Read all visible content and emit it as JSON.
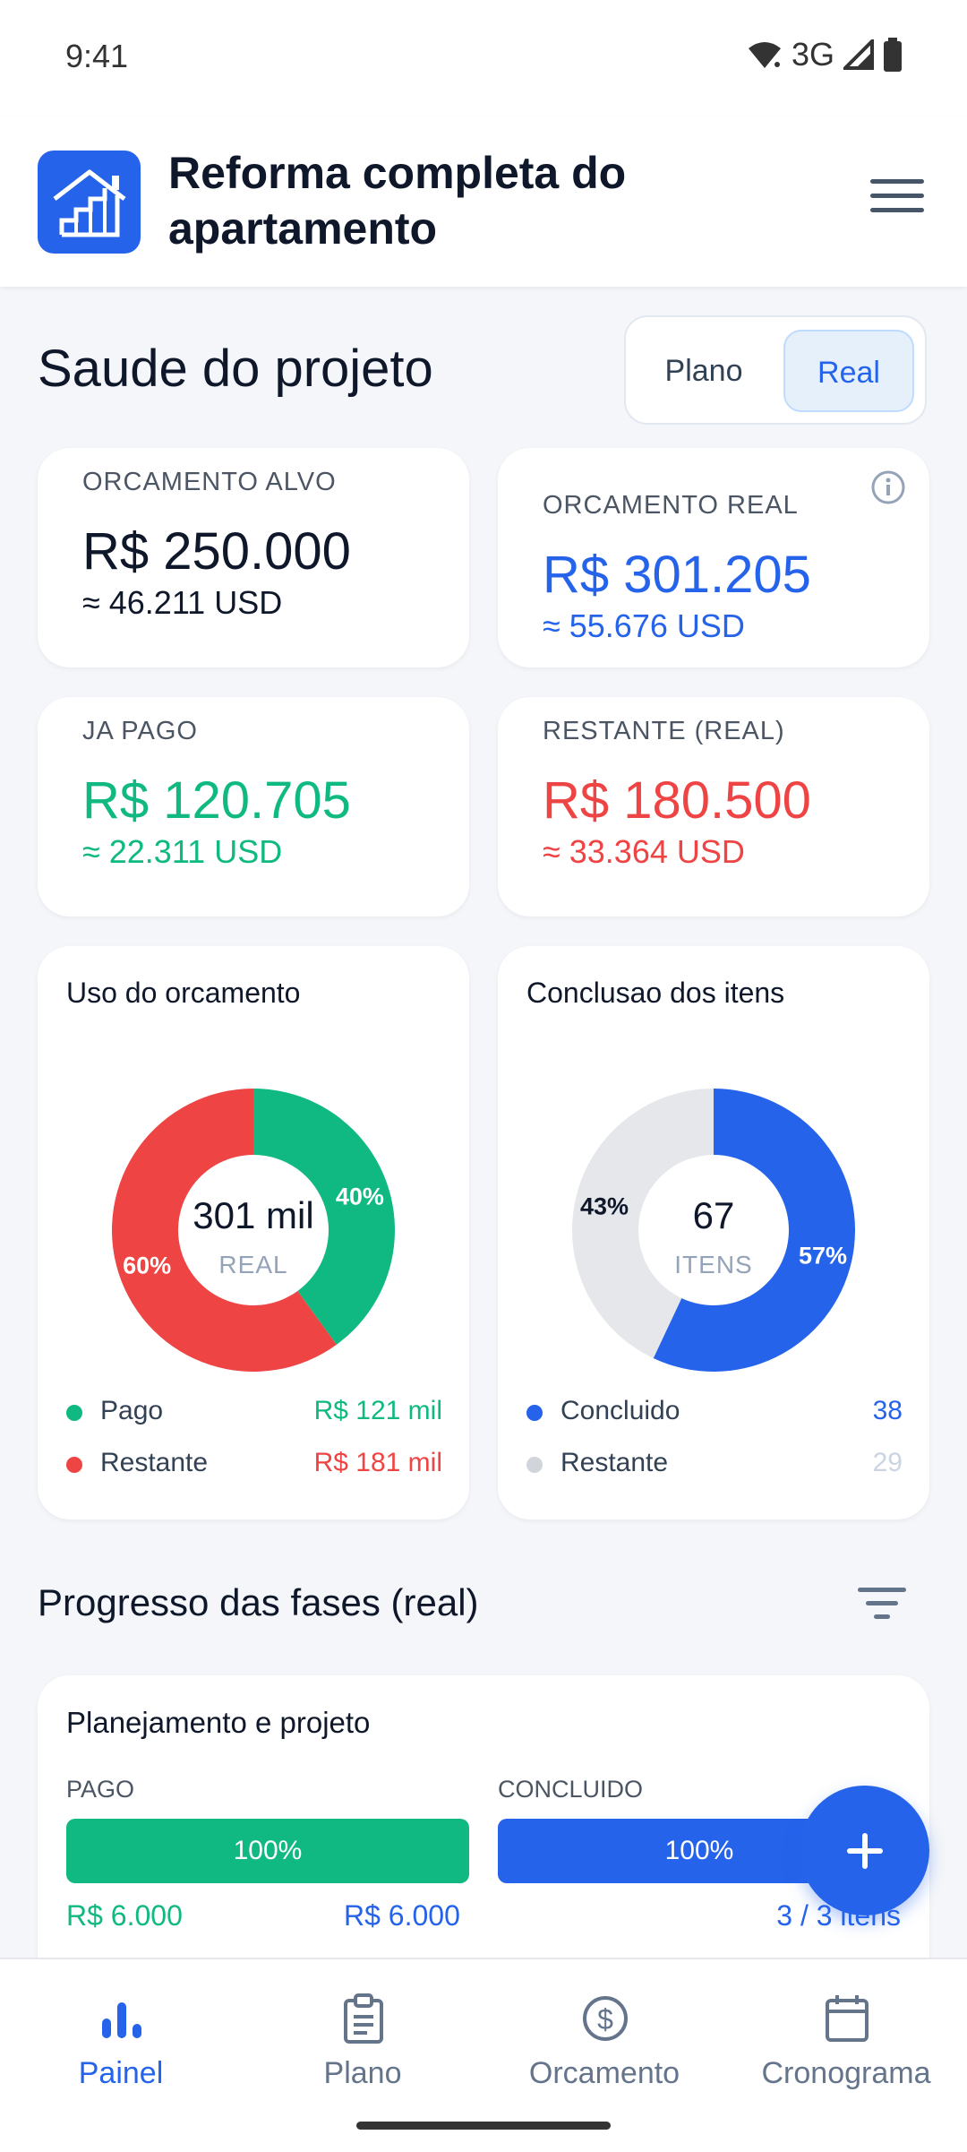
{
  "status": {
    "time": "9:41",
    "network": "3G"
  },
  "app": {
    "title": "Reforma completa do apartamento"
  },
  "health": {
    "title": "Saude do projeto",
    "toggle": {
      "plano": "Plano",
      "real": "Real",
      "selected": "Real"
    }
  },
  "stats": {
    "target": {
      "label": "ORCAMENTO ALVO",
      "value": "R$ 250.000",
      "usd": "≈ 46.211 USD"
    },
    "real": {
      "label": "ORCAMENTO REAL",
      "value": "R$ 301.205",
      "usd": "≈ 55.676 USD"
    },
    "paid": {
      "label": "JA PAGO",
      "value": "R$ 120.705",
      "usd": "≈ 22.311 USD"
    },
    "remaining": {
      "label": "RESTANTE (REAL)",
      "value": "R$ 180.500",
      "usd": "≈ 33.364 USD"
    }
  },
  "colors": {
    "green": "#10b981",
    "red": "#ef4444",
    "blue": "#2563eb",
    "gray": "#e5e7eb"
  },
  "chart_data": [
    {
      "type": "pie",
      "title": "Uso do orcamento",
      "center_value": "301 mil",
      "center_label": "REAL",
      "categories": [
        "Pago",
        "Restante"
      ],
      "values": [
        40,
        60
      ],
      "value_labels": [
        "40%",
        "60%"
      ],
      "legend_values": [
        "R$ 121 mil",
        "R$ 181 mil"
      ],
      "colors": [
        "#10b981",
        "#ef4444"
      ]
    },
    {
      "type": "pie",
      "title": "Conclusao dos itens",
      "center_value": "67",
      "center_label": "ITENS",
      "categories": [
        "Concluido",
        "Restante"
      ],
      "values": [
        57,
        43
      ],
      "value_labels": [
        "57%",
        "43%"
      ],
      "legend_values": [
        "38",
        "29"
      ],
      "colors": [
        "#2563eb",
        "#e5e7eb"
      ]
    }
  ],
  "phases": {
    "title": "Progresso das fases (real)",
    "items": [
      {
        "name": "Planejamento e projeto",
        "paid_label": "PAGO",
        "paid_pct": "100%",
        "paid_amount": "R$ 6.000",
        "budget_amount": "R$ 6.000",
        "done_label": "CONCLUIDO",
        "done_pct": "100%",
        "done_items": "3 / 3 itens"
      }
    ]
  },
  "nav": {
    "items": [
      {
        "label": "Painel",
        "icon": "bar-chart-icon",
        "active": true
      },
      {
        "label": "Plano",
        "icon": "clipboard-icon",
        "active": false
      },
      {
        "label": "Orcamento",
        "icon": "dollar-icon",
        "active": false
      },
      {
        "label": "Cronograma",
        "icon": "calendar-icon",
        "active": false
      }
    ]
  }
}
